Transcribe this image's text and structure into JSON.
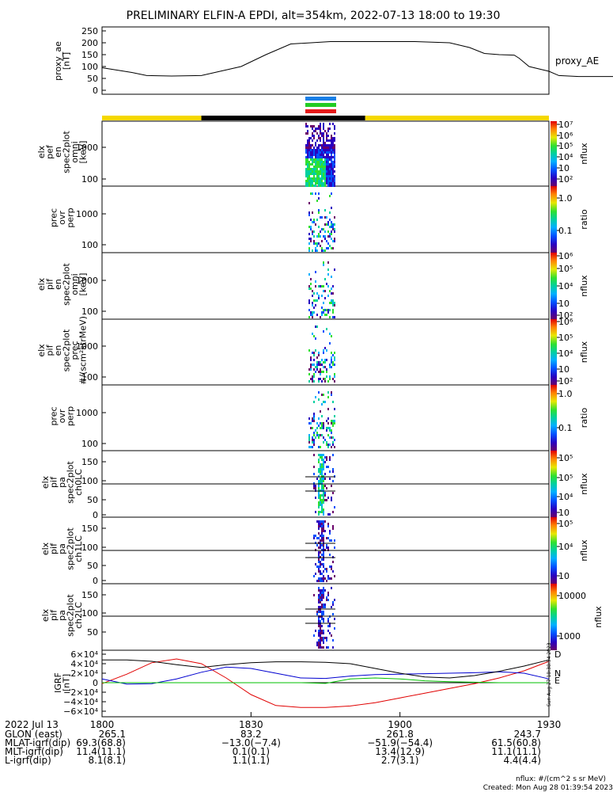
{
  "title": "PRELIMINARY ELFIN-A EPDI, alt=354km, 2022-07-13 18:00 to 19:30",
  "colors": {
    "yellow": "#f5d800",
    "black": "#000000",
    "bar_blue": "#1a7fe6",
    "bar_green": "#22cc22",
    "bar_red": "#e61a1a",
    "bfield_d": "#e00000",
    "bfield_n": "#0000d0",
    "bfield_e": "#00c000"
  },
  "chart_data": [
    {
      "type": "line",
      "panel": "proxy_ae",
      "ylabel_lines": [
        "proxy_ae",
        "[nT]"
      ],
      "yticks": [
        "250",
        "200",
        "150",
        "100",
        "50",
        "0"
      ],
      "ylim": [
        0,
        260
      ],
      "right_label": "proxy_AE",
      "x_minutes": [
        0,
        6,
        9,
        14,
        20,
        28,
        33,
        38,
        46,
        56,
        63,
        70,
        74,
        77,
        80,
        83,
        84,
        86,
        90,
        92,
        96,
        105,
        114
      ],
      "values": [
        95,
        75,
        62,
        60,
        62,
        100,
        150,
        195,
        205,
        205,
        205,
        200,
        180,
        155,
        150,
        148,
        135,
        100,
        80,
        62,
        58,
        58,
        53
      ]
    },
    {
      "type": "heatmap",
      "panel": "elx_pef_en_spec2plot_omni",
      "ylabel_lines": [
        "elx",
        "pef",
        "en",
        "spec2plot",
        "omni",
        "[keV]"
      ],
      "yticks": [
        "1000",
        "100"
      ],
      "ylim": [
        60,
        7000
      ],
      "scale": "log",
      "colorbar": {
        "ticks": [
          "10⁷",
          "10⁶",
          "10⁵",
          "10⁴",
          "10⁳",
          "10²"
        ],
        "label": "nflux",
        "range": [
          100,
          10000000
        ]
      }
    },
    {
      "type": "heatmap",
      "panel": "prec_ovr_perp_1",
      "ylabel_lines": [
        "prec",
        "ovr",
        "perp"
      ],
      "yticks": [
        "1000",
        "100"
      ],
      "ylim": [
        60,
        3000
      ],
      "scale": "log",
      "colorbar": {
        "ticks": [
          "1.0",
          "0.1"
        ],
        "label": "ratio",
        "range": [
          0.01,
          1
        ]
      }
    },
    {
      "type": "heatmap",
      "panel": "elx_pif_en_spec2plot_omni",
      "ylabel_lines": [
        "elx",
        "pif",
        "en",
        "spec2plot",
        "omni",
        "[keV]"
      ],
      "yticks": [
        "1000",
        "100"
      ],
      "ylim": [
        60,
        3000
      ],
      "scale": "log",
      "colorbar": {
        "ticks": [
          "10⁶",
          "10⁵",
          "10⁴",
          "10⁳",
          "10²"
        ],
        "label": "nflux",
        "range": [
          100,
          1000000
        ]
      }
    },
    {
      "type": "heatmap",
      "panel": "elx_pif_en_spec2plot_prec",
      "ylabel_lines": [
        "elx",
        "pif",
        "en",
        "spec2plot",
        "prec",
        "#/(scm²strMeV)"
      ],
      "yticks": [
        "1000",
        "100"
      ],
      "ylim": [
        60,
        3000
      ],
      "scale": "log",
      "colorbar": {
        "ticks": [
          "10⁶",
          "10⁵",
          "10⁴",
          "10⁳",
          "10²"
        ],
        "label": "nflux",
        "range": [
          100,
          1000000
        ]
      }
    },
    {
      "type": "heatmap",
      "panel": "prec_ovr_perp_2",
      "ylabel_lines": [
        "prec",
        "ovr",
        "perp"
      ],
      "yticks": [
        "1000",
        "100"
      ],
      "ylim": [
        60,
        3000
      ],
      "scale": "log",
      "colorbar": {
        "ticks": [
          "1.0",
          "0.1"
        ],
        "label": "ratio",
        "range": [
          0.01,
          1
        ]
      }
    },
    {
      "type": "heatmap",
      "panel": "elx_pif_pa_spec2plot_ch0LC",
      "ylabel_lines": [
        "elx",
        "pif",
        "pa",
        "spec2plot",
        "ch0LC"
      ],
      "yticks": [
        "150",
        "100",
        "50",
        "0"
      ],
      "ylim": [
        0,
        185
      ],
      "colorbar": {
        "ticks": [
          "10⁵",
          "10⁵",
          "10⁴",
          "10⁳"
        ],
        "label": "nflux",
        "range": [
          1000,
          100000
        ]
      }
    },
    {
      "type": "heatmap",
      "panel": "elx_pif_pa_spec2plot_ch1LC",
      "ylabel_lines": [
        "elx",
        "pif",
        "pa",
        "spec2plot",
        "ch1LC"
      ],
      "yticks": [
        "150",
        "100",
        "50",
        "0"
      ],
      "ylim": [
        0,
        185
      ],
      "colorbar": {
        "ticks": [
          "10⁵",
          "10⁴",
          "10⁳"
        ],
        "label": "nflux",
        "range": [
          1000,
          100000
        ]
      }
    },
    {
      "type": "heatmap",
      "panel": "elx_pif_pa_spec2plot_ch2LC",
      "ylabel_lines": [
        "elx",
        "pif",
        "pa",
        "spec2plot",
        "ch2LC"
      ],
      "yticks": [
        "150",
        "100",
        "50"
      ],
      "ylim": [
        0,
        185
      ],
      "colorbar": {
        "ticks": [
          "10000",
          "1000"
        ],
        "label": "nflux",
        "range": [
          500,
          20000
        ]
      }
    },
    {
      "type": "line",
      "panel": "IGRF",
      "ylabel_lines": [
        "IGRF",
        "[nT]"
      ],
      "yticks": [
        "6×10⁴",
        "4×10⁴",
        "2×10⁴",
        "0",
        "−2×10⁴",
        "−4×10⁴",
        "−6×10⁴"
      ],
      "ylim": [
        -65000,
        65000
      ],
      "legend": [
        "D",
        "N",
        "E"
      ],
      "x_minutes": [
        0,
        5,
        10,
        15,
        20,
        25,
        30,
        35,
        40,
        45,
        50,
        55,
        60,
        65,
        70,
        75,
        80,
        85,
        90
      ],
      "series": [
        {
          "name": "D",
          "values": [
            -2000,
            18000,
            42000,
            50000,
            40000,
            10000,
            -25000,
            -48000,
            -52000,
            -52000,
            -49000,
            -42000,
            -32000,
            -22000,
            -12000,
            -2000,
            10000,
            25000,
            45000
          ]
        },
        {
          "name": "N",
          "values": [
            8000,
            -3000,
            -2000,
            8000,
            22000,
            33000,
            30000,
            20000,
            10000,
            9000,
            14000,
            17000,
            18000,
            19000,
            20000,
            21000,
            23000,
            20000,
            8000
          ]
        },
        {
          "name": "E",
          "values": [
            0,
            0,
            0,
            0,
            0,
            0,
            0,
            0,
            0,
            -1500,
            8000,
            10000,
            8000,
            4000,
            2000,
            1000,
            0,
            0,
            0
          ]
        },
        {
          "name": "total",
          "values": [
            48000,
            48000,
            45000,
            38000,
            32000,
            38000,
            42000,
            44000,
            44000,
            43000,
            40000,
            30000,
            20000,
            12000,
            10000,
            15000,
            24000,
            35000,
            48000
          ]
        }
      ]
    }
  ],
  "side_text": "Sun Aug 27 18:38:54 2023",
  "ephemeris": {
    "headers": [
      "2022 Jul 13",
      "1800",
      "1830",
      "1900",
      "1930"
    ],
    "rows": [
      {
        "label": "GLON (east)",
        "values": [
          "265.1",
          "83.2",
          "261.8",
          "243.7"
        ]
      },
      {
        "label": "MLAT-igrf(dip)",
        "values": [
          "69.3(68.8)",
          "−13.0(−7.4)",
          "−51.9(−54.4)",
          "61.5(60.8)"
        ]
      },
      {
        "label": "MLT-igrf(dip)",
        "values": [
          "11.4(11.1)",
          "0.1(0.1)",
          "13.4(12.9)",
          "11.1(11.1)"
        ]
      },
      {
        "label": "L-igrf(dip)",
        "values": [
          "8.1(8.1)",
          "1.1(1.1)",
          "2.7(3.1)",
          "4.4(4.4)"
        ]
      }
    ]
  },
  "footer": {
    "units": "nflux: #/(cm^2 s sr MeV)",
    "created": "Created: Mon Aug 28 01:39:54 2023"
  }
}
